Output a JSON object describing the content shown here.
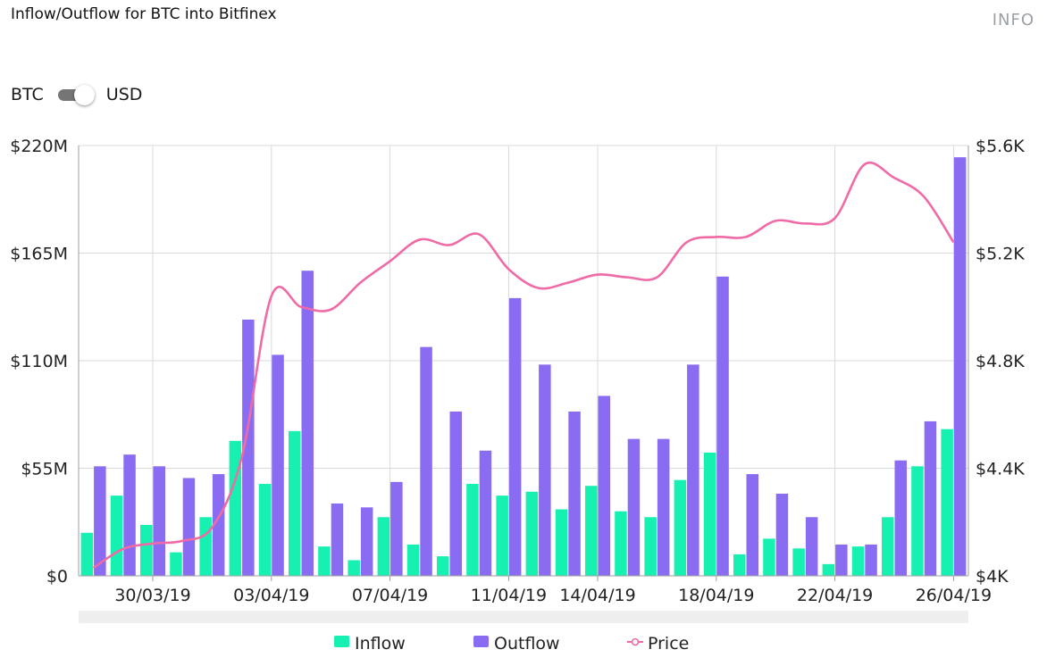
{
  "header": {
    "title": "Inflow/Outflow for BTC into Bitfinex",
    "info_label": "INFO"
  },
  "toggle": {
    "left_label": "BTC",
    "right_label": "USD",
    "selected": "USD"
  },
  "colors": {
    "inflow": "#16f0b0",
    "outflow": "#8a6cf2",
    "price": "#f06aa6",
    "grid": "#d9d9d9",
    "axis": "#9e9e9e",
    "scrollbar": "#eeeeee"
  },
  "chart_data": {
    "type": "bar",
    "title": "Inflow/Outflow for BTC into Bitfinex",
    "left_axis": {
      "ylim": [
        0,
        220
      ],
      "unit": "USD millions",
      "ticks": [
        0,
        55,
        110,
        165,
        220
      ],
      "tick_labels": [
        "$0",
        "$55M",
        "$110M",
        "$165M",
        "$220M"
      ]
    },
    "right_axis": {
      "ylim": [
        4000,
        5600
      ],
      "unit": "USD",
      "ticks": [
        4000,
        4400,
        4800,
        5200,
        5600
      ],
      "tick_labels": [
        "$4K",
        "$4.4K",
        "$4.8K",
        "$5.2K",
        "$5.6K"
      ]
    },
    "x_labels": [
      {
        "index": 2,
        "label": "30/03/19"
      },
      {
        "index": 6,
        "label": "03/04/19"
      },
      {
        "index": 10,
        "label": "07/04/19"
      },
      {
        "index": 14,
        "label": "11/04/19"
      },
      {
        "index": 17,
        "label": "14/04/19"
      },
      {
        "index": 21,
        "label": "18/04/19"
      },
      {
        "index": 25,
        "label": "22/04/19"
      },
      {
        "index": 29,
        "label": "26/04/19"
      }
    ],
    "grid": true,
    "legend_position": "bottom-center",
    "series": [
      {
        "name": "Inflow",
        "type": "bar",
        "values": [
          22,
          41,
          26,
          12,
          30,
          69,
          47,
          74,
          15,
          8,
          30,
          16,
          10,
          47,
          41,
          43,
          34,
          46,
          33,
          30,
          49,
          63,
          11,
          19,
          14,
          6,
          15,
          30,
          56,
          75
        ]
      },
      {
        "name": "Outflow",
        "type": "bar",
        "values": [
          56,
          62,
          56,
          50,
          52,
          131,
          113,
          156,
          37,
          35,
          48,
          117,
          84,
          64,
          142,
          108,
          84,
          92,
          70,
          70,
          108,
          153,
          52,
          42,
          30,
          16,
          16,
          59,
          79,
          214
        ]
      },
      {
        "name": "Price",
        "type": "line",
        "axis": "right",
        "values": [
          4030,
          4100,
          4120,
          4130,
          4180,
          4440,
          5040,
          5000,
          4990,
          5090,
          5170,
          5250,
          5230,
          5270,
          5140,
          5070,
          5090,
          5120,
          5110,
          5110,
          5240,
          5260,
          5260,
          5320,
          5310,
          5330,
          5530,
          5480,
          5410,
          5240
        ]
      }
    ]
  }
}
